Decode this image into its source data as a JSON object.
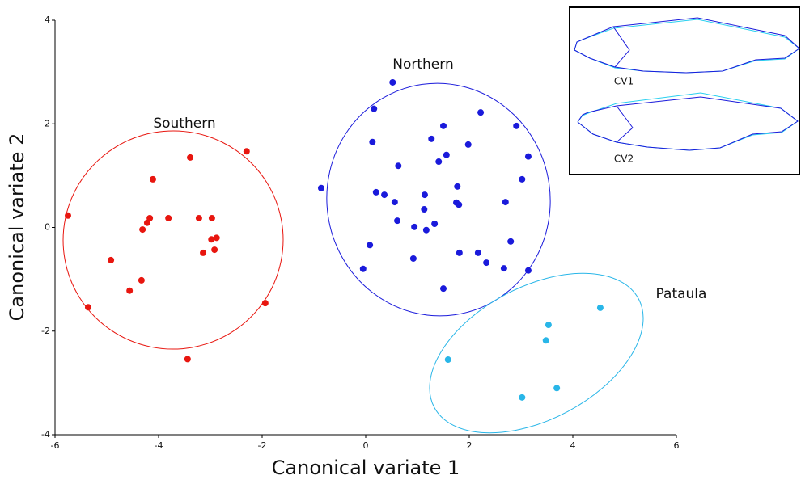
{
  "chart_data": {
    "type": "scatter",
    "xlabel": "Canonical variate 1",
    "ylabel": "Canonical variate 2",
    "xlim": [
      -6,
      6
    ],
    "xticks": [
      -6,
      -4,
      -2,
      0,
      2,
      4,
      6
    ],
    "ylim": [
      -4,
      4
    ],
    "yticks": [
      -4,
      -2,
      0,
      2,
      4
    ],
    "annotations": [
      "Southern",
      "Northern",
      "Pataula",
      "CV1",
      "CV2"
    ],
    "series": [
      {
        "name": "Southern",
        "color": "#e8160f",
        "x": [
          -5.75,
          -5.36,
          -4.92,
          -4.56,
          -4.33,
          -4.31,
          -4.22,
          -4.17,
          -4.11,
          -3.81,
          -3.39,
          -3.44,
          -3.22,
          -3.14,
          -2.97,
          -2.98,
          -2.92,
          -2.88,
          -2.3,
          -1.94
        ],
        "values": [
          0.23,
          -1.54,
          -0.63,
          -1.22,
          -1.02,
          -0.04,
          0.09,
          0.18,
          0.93,
          0.18,
          1.35,
          -2.54,
          0.18,
          -0.49,
          0.18,
          -0.23,
          -0.43,
          -0.2,
          1.47,
          -1.46
        ]
      },
      {
        "name": "Northern",
        "color": "#1a1adb",
        "x": [
          -0.86,
          0.52,
          0.16,
          0.13,
          -0.05,
          0.08,
          0.2,
          0.36,
          0.56,
          0.61,
          0.63,
          0.92,
          0.94,
          1.13,
          1.14,
          1.17,
          1.27,
          1.33,
          1.41,
          1.5,
          1.56,
          1.5,
          1.77,
          1.75,
          1.8,
          1.81,
          1.98,
          2.22,
          2.17,
          2.33,
          2.67,
          2.7,
          2.8,
          2.91,
          3.02,
          3.14,
          3.14
        ],
        "values": [
          0.76,
          2.8,
          2.29,
          1.65,
          -0.8,
          -0.34,
          0.68,
          0.63,
          0.49,
          0.13,
          1.19,
          -0.6,
          0.01,
          0.35,
          0.63,
          -0.05,
          1.71,
          0.07,
          1.27,
          1.96,
          1.4,
          -1.18,
          0.79,
          0.48,
          0.44,
          -0.49,
          1.6,
          2.22,
          -0.49,
          -0.68,
          -0.79,
          0.49,
          -0.27,
          1.96,
          0.93,
          1.37,
          -0.83
        ]
      },
      {
        "name": "Pataula",
        "color": "#29b6e8",
        "x": [
          1.59,
          3.02,
          3.48,
          3.53,
          3.69,
          4.53
        ],
        "values": [
          -2.55,
          -3.28,
          -2.18,
          -1.88,
          -3.1,
          -1.55
        ]
      }
    ]
  }
}
